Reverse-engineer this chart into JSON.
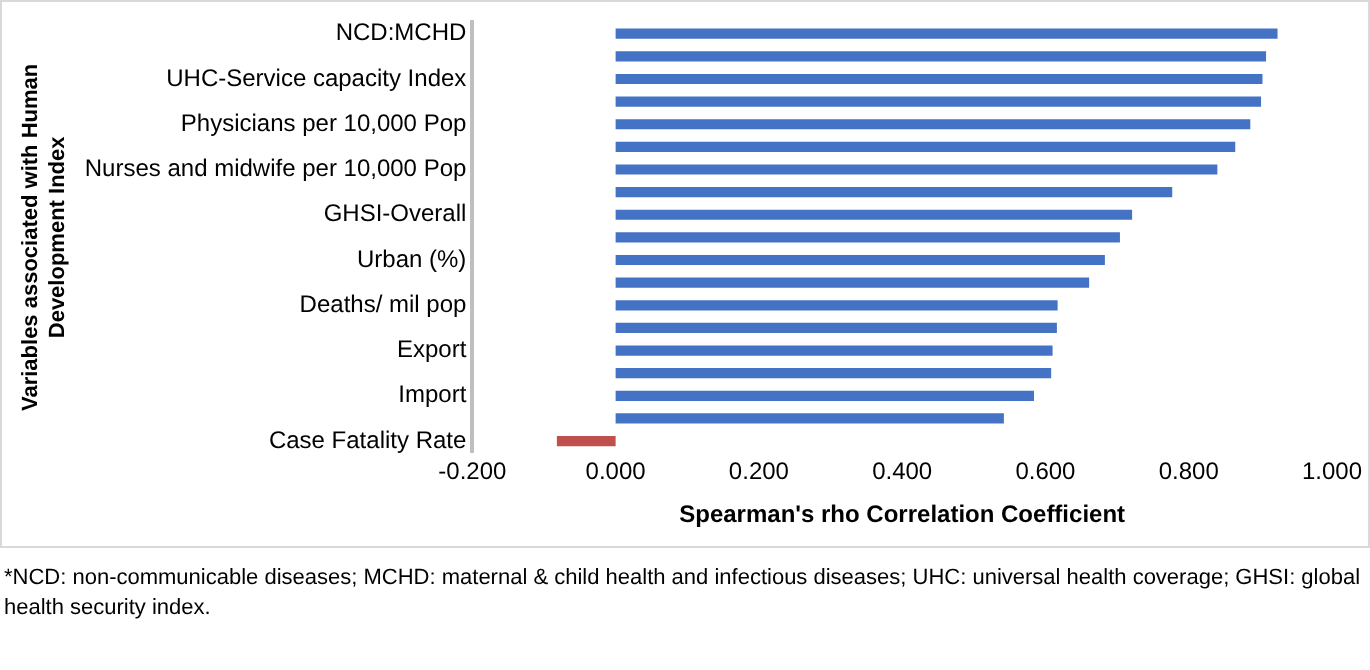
{
  "chart_data": {
    "type": "bar",
    "orientation": "horizontal",
    "ylabel": "Variables associated with Human Development Index",
    "xlabel": "Spearman's rho Correlation Coefficient",
    "categories": [
      "NCD:MCHD",
      null,
      "UHC-Service capacity Index",
      null,
      "Physicians per 10,000 Pop",
      null,
      "Nurses and midwife per 10,000 Pop",
      null,
      "GHSI-Overall",
      null,
      "Urban (%)",
      null,
      "Deaths/ mil pop",
      null,
      "Export",
      null,
      "Import",
      null,
      "Case Fatality Rate"
    ],
    "values": [
      0.924,
      0.908,
      0.903,
      0.901,
      0.886,
      0.865,
      0.84,
      0.777,
      0.721,
      0.704,
      0.683,
      0.661,
      0.617,
      0.616,
      0.61,
      0.608,
      0.584,
      0.542,
      -0.082
    ],
    "colors": [
      "#4472c4",
      "#4472c4",
      "#4472c4",
      "#4472c4",
      "#4472c4",
      "#4472c4",
      "#4472c4",
      "#4472c4",
      "#4472c4",
      "#4472c4",
      "#4472c4",
      "#4472c4",
      "#4472c4",
      "#4472c4",
      "#4472c4",
      "#4472c4",
      "#4472c4",
      "#4472c4",
      "#c0504d"
    ],
    "xlim": [
      -0.2,
      1.0
    ],
    "xticks": [
      {
        "value": -0.2,
        "label": "-0.200"
      },
      {
        "value": 0,
        "label": "0.000"
      },
      {
        "value": 0.2,
        "label": "0.200"
      },
      {
        "value": 0.4,
        "label": "0.400"
      },
      {
        "value": 0.6,
        "label": "0.600"
      },
      {
        "value": 0.8,
        "label": "0.800"
      },
      {
        "value": 1.0,
        "label": "1.000"
      }
    ],
    "grid": false,
    "legend": false,
    "annotations": [
      "*NCD: non-communicable diseases; MCHD: maternal & child health and infectious diseases; UHC: universal health coverage; GHSI: global health security index."
    ]
  }
}
